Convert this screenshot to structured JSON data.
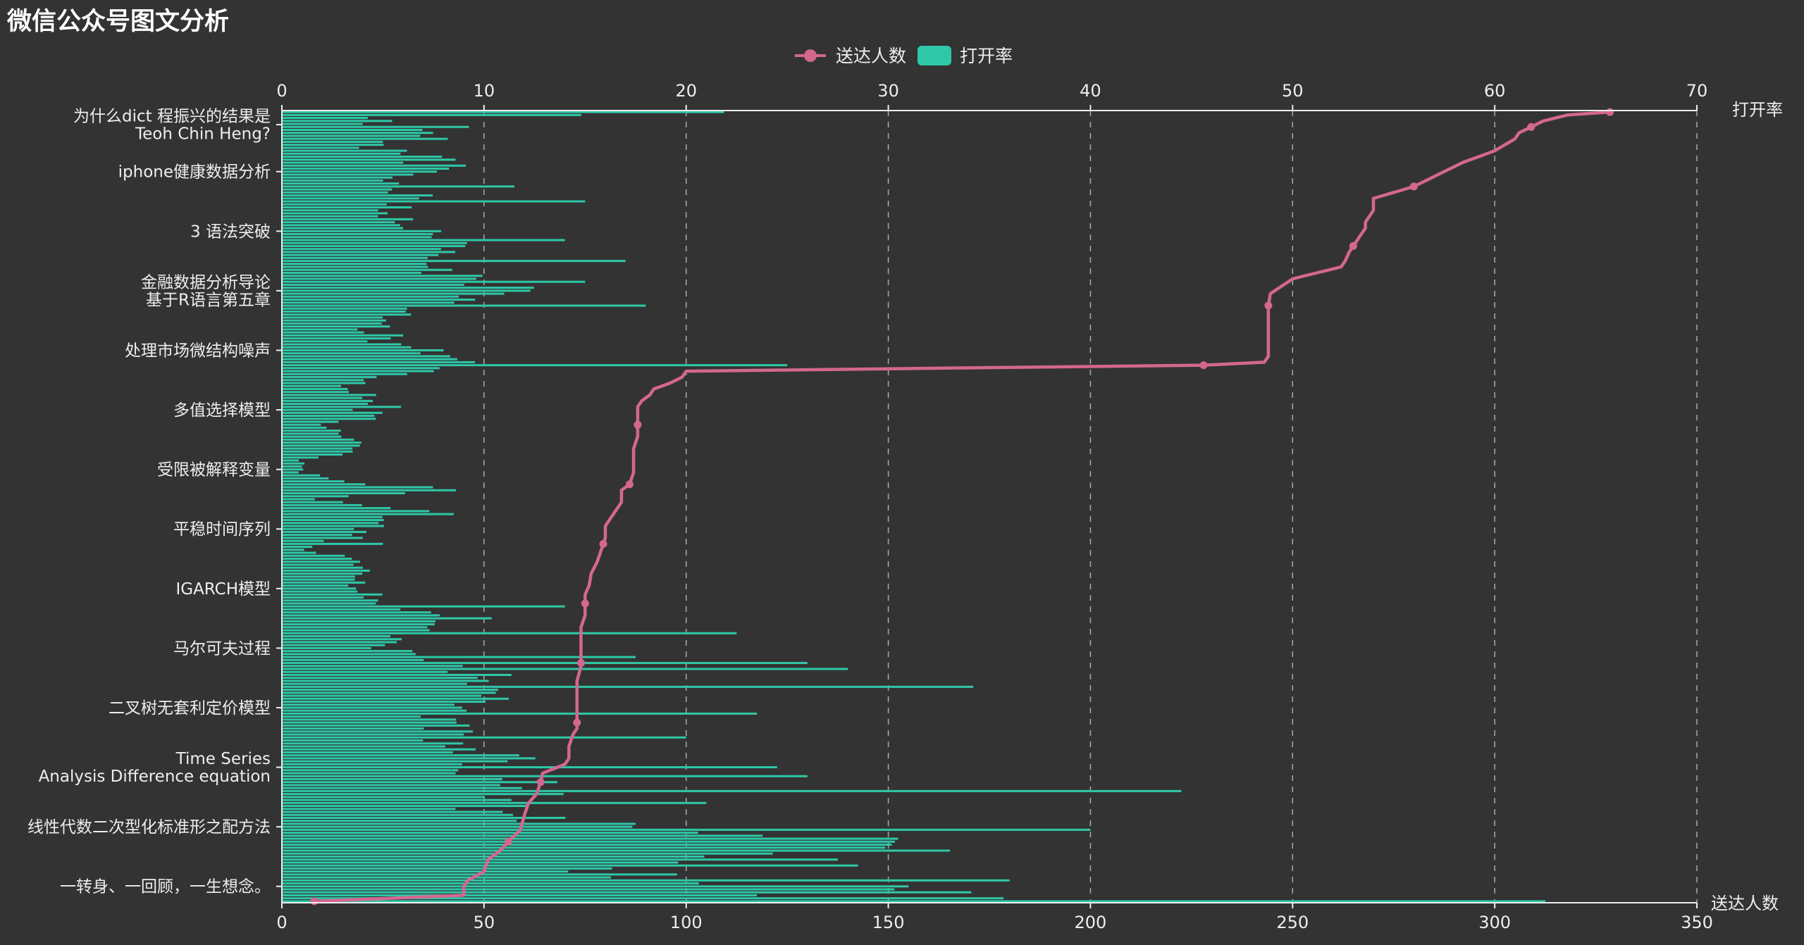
{
  "title": "微信公众号图文分析",
  "colors": {
    "background": "#333333",
    "bar": "#2ec7a7",
    "line": "#d4678f",
    "axis": "#eeeeee",
    "grid": "#aaaaaa",
    "text": "#eeeeee"
  },
  "chart_data": {
    "type": "bar",
    "orientation": "horizontal",
    "title": "微信公众号图文分析",
    "legend": {
      "position": "top-center",
      "items": [
        {
          "name": "送达人数",
          "type": "line",
          "icon": "circle-line-icon"
        },
        {
          "name": "打开率",
          "type": "bar",
          "icon": "rounded-rect-icon"
        }
      ]
    },
    "category_labels_shown": [
      [
        "为什么dict 程振兴的结果是",
        "Teoh Chin Heng?"
      ],
      [
        "iphone健康数据分析"
      ],
      [
        "3 语法突破"
      ],
      [
        "金融数据分析导论",
        "基于R语言第五章"
      ],
      [
        "处理市场微结构噪声"
      ],
      [
        "多值选择模型"
      ],
      [
        "受限被解释变量"
      ],
      [
        "平稳时间序列"
      ],
      [
        "IGARCH模型"
      ],
      [
        "马尔可夫过程"
      ],
      [
        "二叉树无套利定价模型"
      ],
      [
        "Time Series",
        "Analysis Difference equation"
      ],
      [
        "线性代数二次型化标准形之配方法"
      ],
      [
        "一转身、一回顾，一生想念。"
      ]
    ],
    "category_count": 266,
    "category_order": "bottom-to-top",
    "x_axis_top": {
      "name": "打开率",
      "min": 0,
      "max": 70,
      "interval": 10,
      "ticks": [
        "0",
        "10",
        "20",
        "30",
        "40",
        "50",
        "60",
        "70"
      ]
    },
    "x_axis_bottom": {
      "name": "送达人数",
      "min": 0,
      "max": 350,
      "interval": 50,
      "ticks": [
        "0",
        "50",
        "100",
        "150",
        "200",
        "250",
        "300",
        "350"
      ]
    },
    "grid": "vertical-dashed",
    "series": [
      {
        "name": "打开率",
        "type": "bar",
        "axis": "top",
        "approximate": true,
        "keyframes": [
          [
            0,
            62.5
          ],
          [
            3,
            36
          ],
          [
            7,
            18
          ],
          [
            10,
            16
          ],
          [
            14,
            17
          ],
          [
            18,
            33
          ],
          [
            21,
            28
          ],
          [
            26,
            14
          ],
          [
            31,
            10
          ],
          [
            36,
            12
          ],
          [
            40,
            12
          ],
          [
            44,
            8
          ],
          [
            48,
            12
          ],
          [
            52,
            8
          ],
          [
            56,
            9
          ],
          [
            58,
            8.5
          ],
          [
            60,
            8.5
          ],
          [
            62,
            8
          ],
          [
            65,
            9
          ],
          [
            70,
            11
          ],
          [
            75,
            10
          ],
          [
            80,
            9
          ],
          [
            85,
            5
          ],
          [
            90,
            6
          ],
          [
            95,
            9
          ],
          [
            100,
            5
          ],
          [
            104,
            4
          ],
          [
            106,
            3.5
          ],
          [
            110,
            4
          ],
          [
            113,
            4
          ],
          [
            116,
            3
          ],
          [
            118,
            1
          ],
          [
            121,
            2.5
          ],
          [
            124,
            4
          ],
          [
            128,
            5
          ],
          [
            131,
            7
          ],
          [
            135,
            1.5
          ],
          [
            138,
            8.5
          ],
          [
            141,
            3
          ],
          [
            144,
            1
          ],
          [
            148,
            1
          ],
          [
            152,
            4
          ],
          [
            155,
            3.5
          ],
          [
            160,
            2
          ],
          [
            163,
            5
          ],
          [
            166,
            5
          ],
          [
            170,
            4
          ],
          [
            173,
            3
          ],
          [
            176,
            5
          ],
          [
            180,
            9
          ],
          [
            184,
            8
          ],
          [
            188,
            5
          ],
          [
            191,
            4
          ],
          [
            194,
            5
          ],
          [
            198,
            6
          ],
          [
            201,
            8
          ],
          [
            205,
            12
          ],
          [
            210,
            9
          ],
          [
            215,
            6
          ],
          [
            219,
            9
          ],
          [
            223,
            8
          ],
          [
            227,
            6
          ],
          [
            232,
            5
          ],
          [
            236,
            7
          ],
          [
            240,
            5
          ],
          [
            244,
            6
          ],
          [
            247,
            10
          ],
          [
            250,
            8
          ],
          [
            253,
            4
          ],
          [
            256,
            7
          ],
          [
            260,
            8
          ],
          [
            263,
            4.5
          ],
          [
            265,
            22
          ]
        ],
        "spikes": [
          [
            1,
            35.7
          ],
          [
            2,
            23.5
          ],
          [
            5,
            31
          ],
          [
            7,
            36
          ],
          [
            12,
            28.5
          ],
          [
            14,
            27.5
          ],
          [
            24,
            40
          ],
          [
            26,
            17.5
          ],
          [
            33,
            21
          ],
          [
            37,
            44.5
          ],
          [
            42,
            26
          ],
          [
            45,
            24.5
          ],
          [
            55,
            20
          ],
          [
            63,
            23.5
          ],
          [
            72,
            34.2
          ],
          [
            78,
            28
          ],
          [
            80,
            26
          ],
          [
            82,
            17.5
          ],
          [
            90,
            22.5
          ],
          [
            99,
            14
          ],
          [
            120,
            5
          ],
          [
            122,
            4
          ],
          [
            130,
            8.5
          ],
          [
            136,
            3.3
          ],
          [
            150,
            3
          ],
          [
            165,
            3.5
          ],
          [
            180,
            25
          ],
          [
            185,
            8
          ],
          [
            190,
            6
          ],
          [
            200,
            18
          ],
          [
            204,
            11
          ],
          [
            208,
            15
          ],
          [
            215,
            17
          ],
          [
            222,
            14
          ],
          [
            235,
            15
          ],
          [
            240,
            11.5
          ],
          [
            244,
            6.5
          ],
          [
            248,
            6
          ],
          [
            255,
            5
          ],
          [
            261,
            4
          ]
        ]
      },
      {
        "name": "送达人数",
        "type": "line",
        "axis": "bottom",
        "approximate": true,
        "keyframes": [
          [
            0,
            8
          ],
          [
            2,
            45
          ],
          [
            5,
            45
          ],
          [
            7,
            46
          ],
          [
            10,
            50
          ],
          [
            14,
            51
          ],
          [
            17,
            54
          ],
          [
            20,
            56
          ],
          [
            24,
            59
          ],
          [
            29,
            60
          ],
          [
            33,
            61
          ],
          [
            36,
            63
          ],
          [
            40,
            64
          ],
          [
            43,
            64.5
          ],
          [
            46,
            70
          ],
          [
            48,
            71
          ],
          [
            52,
            71
          ],
          [
            56,
            72
          ],
          [
            58,
            73
          ],
          [
            62,
            73
          ],
          [
            65,
            73
          ],
          [
            70,
            73
          ],
          [
            74,
            73
          ],
          [
            79,
            74
          ],
          [
            84,
            74
          ],
          [
            88,
            74
          ],
          [
            92,
            74
          ],
          [
            96,
            75
          ],
          [
            100,
            75
          ],
          [
            103,
            75
          ],
          [
            106,
            76
          ],
          [
            110,
            76.5
          ],
          [
            114,
            78
          ],
          [
            118,
            79
          ],
          [
            122,
            80
          ],
          [
            126,
            80
          ],
          [
            130,
            82
          ],
          [
            134,
            84
          ],
          [
            138,
            84
          ],
          [
            140,
            86
          ],
          [
            144,
            87
          ],
          [
            148,
            87
          ],
          [
            152,
            87
          ],
          [
            156,
            88
          ],
          [
            160,
            88
          ],
          [
            163,
            88
          ],
          [
            166,
            88
          ],
          [
            168,
            89
          ],
          [
            170,
            91
          ],
          [
            172,
            92
          ],
          [
            174,
            96
          ],
          [
            176,
            99
          ],
          [
            178,
            100
          ],
          [
            180,
            228
          ],
          [
            181,
            243
          ],
          [
            182,
            243.5
          ],
          [
            183,
            244
          ],
          [
            187,
            244
          ],
          [
            194,
            244
          ],
          [
            200,
            244
          ],
          [
            204,
            244.5
          ],
          [
            209,
            250
          ],
          [
            211,
            256
          ],
          [
            213,
            262
          ],
          [
            215,
            263
          ],
          [
            218,
            264
          ],
          [
            222,
            266
          ],
          [
            226,
            268
          ],
          [
            228,
            268
          ],
          [
            232,
            270
          ],
          [
            236,
            270
          ],
          [
            240,
            280
          ],
          [
            244,
            286
          ],
          [
            248,
            292
          ],
          [
            252,
            300
          ],
          [
            256,
            305
          ],
          [
            258,
            306
          ],
          [
            262,
            312
          ],
          [
            264,
            318
          ],
          [
            266,
            339
          ]
        ]
      }
    ]
  }
}
